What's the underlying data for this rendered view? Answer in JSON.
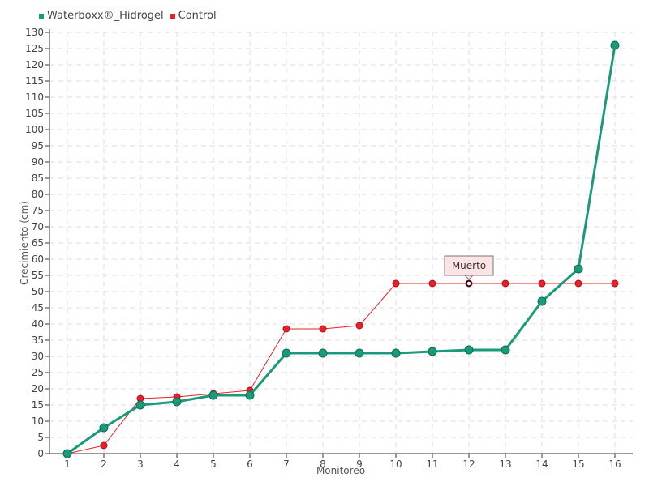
{
  "chart_data": {
    "type": "line",
    "xlabel": "Monitoreo",
    "ylabel": "Crecimiento (cm)",
    "categories": [
      "1",
      "2",
      "3",
      "4",
      "5",
      "6",
      "7",
      "8",
      "9",
      "10",
      "11",
      "12",
      "13",
      "14",
      "15",
      "16"
    ],
    "ylim": [
      0,
      130
    ],
    "ytick_step": 5,
    "grid": true,
    "legend_position": "top-left",
    "series": [
      {
        "name": "Waterboxx®_Hidrogel",
        "color": "#1a9a7a",
        "values": [
          0,
          8,
          15,
          16,
          18,
          18,
          31,
          31,
          31,
          31,
          31.5,
          32,
          32,
          47,
          57,
          126
        ]
      },
      {
        "name": "Control",
        "color": "#e8202a",
        "values": [
          0,
          2.5,
          17,
          17.5,
          18.5,
          19.5,
          38.5,
          38.5,
          39.5,
          52.5,
          52.5,
          52.5,
          52.5,
          52.5,
          52.5,
          52.5
        ]
      }
    ],
    "annotations": [
      {
        "text": "Muerto",
        "series": 1,
        "index": 11
      }
    ]
  }
}
